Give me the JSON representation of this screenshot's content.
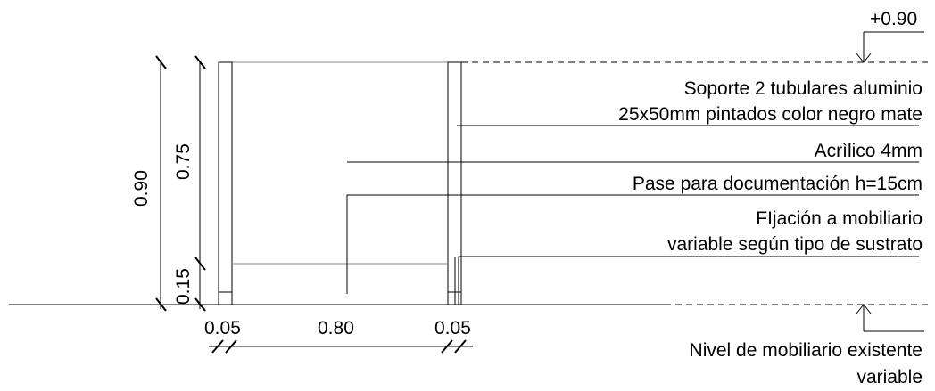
{
  "dimensions": {
    "top_level": "+0.90",
    "total_height": "0.90",
    "upper_height": "0.75",
    "lower_height": "0.15",
    "left_post_width": "0.05",
    "span_width": "0.80",
    "right_post_width": "0.05"
  },
  "annotations": {
    "support_line1": "Soporte 2 tubulares aluminio",
    "support_line2": "25x50mm pintados color negro mate",
    "acrylic": "Acrìlico 4mm",
    "pass_through": "Pase para documentación h=15cm",
    "fixing_line1": "FIjación a mobiliario",
    "fixing_line2": "variable según tipo de sustrato",
    "base_line1": "Nivel de mobiliario existente",
    "base_line2": "variable"
  }
}
